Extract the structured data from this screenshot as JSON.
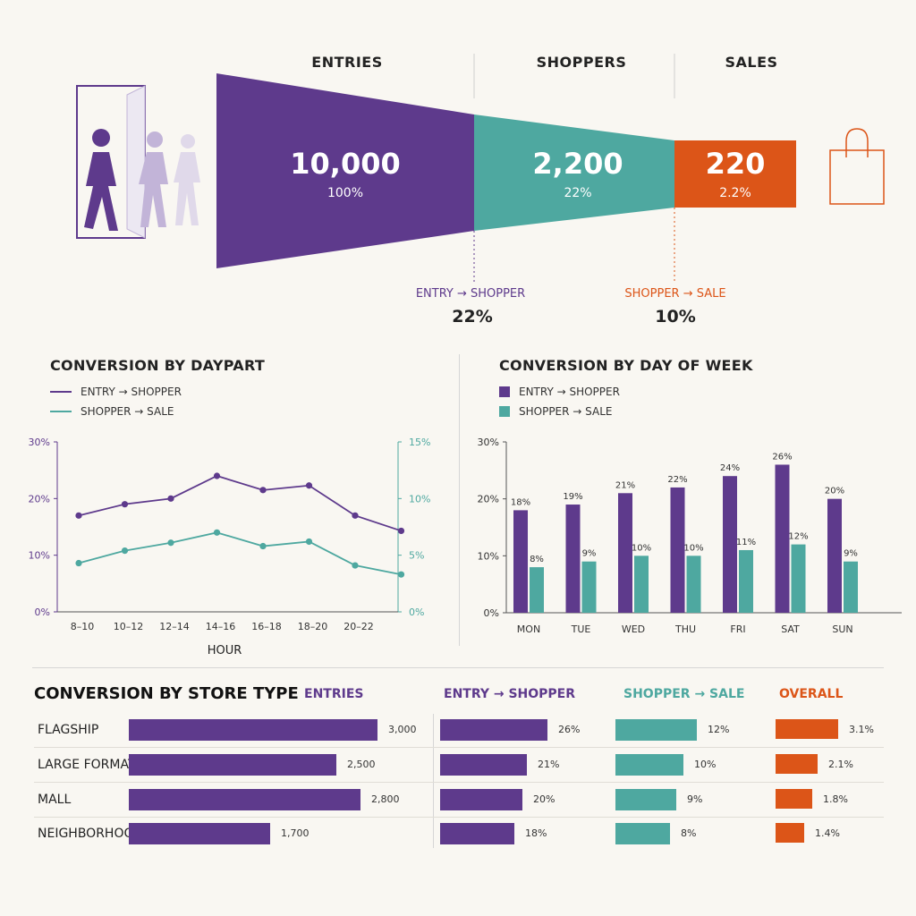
{
  "colors": {
    "purple": "#5e3a8c",
    "teal": "#4ea8a0",
    "orange": "#dc5518",
    "light_purple": "#c2b4d8"
  },
  "funnel": {
    "stages": [
      {
        "label": "ENTRIES",
        "value": "10,000",
        "pct": "100%"
      },
      {
        "label": "SHOPPERS",
        "value": "2,200",
        "pct": "22%"
      },
      {
        "label": "SALES",
        "value": "220",
        "pct": "2.2%"
      }
    ],
    "rates": [
      {
        "label": "ENTRY → SHOPPER",
        "value": "22%"
      },
      {
        "label": "SHOPPER → SALE",
        "value": "10%"
      }
    ],
    "icons": {
      "left": "people-entering-door-icon",
      "right": "shopping-bag-icon"
    }
  },
  "daypart": {
    "title": "CONVERSION BY DAYPART",
    "legend": [
      "ENTRY → SHOPPER",
      "SHOPPER → SALE"
    ],
    "xlabel": "HOUR",
    "left_ticks": [
      "0%",
      "10%",
      "20%",
      "30%"
    ],
    "right_ticks": [
      "0%",
      "5%",
      "10%",
      "15%"
    ]
  },
  "dow": {
    "title": "CONVERSION BY DAY OF WEEK",
    "legend": [
      "ENTRY → SHOPPER",
      "SHOPPER → SALE"
    ],
    "y_ticks": [
      "0%",
      "10%",
      "20%",
      "30%"
    ]
  },
  "store": {
    "title": "CONVERSION BY STORE TYPE",
    "headers": {
      "entries": "ENTRIES",
      "e2s": "ENTRY → SHOPPER",
      "s2s": "SHOPPER → SALE",
      "overall": "OVERALL"
    }
  },
  "chart_data": [
    {
      "type": "line",
      "title": "CONVERSION BY DAYPART",
      "xlabel": "HOUR",
      "categories": [
        "8–10",
        "10–12",
        "12–14",
        "14–16",
        "16–18",
        "18–20",
        "20–22",
        ""
      ],
      "series": [
        {
          "name": "ENTRY → SHOPPER",
          "axis": "left",
          "values": [
            17,
            19,
            20,
            24,
            21.5,
            22.3,
            17,
            14.3
          ]
        },
        {
          "name": "SHOPPER → SALE",
          "axis": "right",
          "values": [
            4.3,
            5.4,
            6.1,
            7.0,
            5.8,
            6.2,
            4.1,
            3.3
          ]
        }
      ],
      "ylim_left": [
        0,
        30
      ],
      "ylim_right": [
        0,
        15
      ],
      "legend": "top-left"
    },
    {
      "type": "bar",
      "title": "CONVERSION BY DAY OF WEEK",
      "categories": [
        "MON",
        "TUE",
        "WED",
        "THU",
        "FRI",
        "SAT",
        "SUN"
      ],
      "series": [
        {
          "name": "ENTRY → SHOPPER",
          "values": [
            18,
            19,
            21,
            22,
            24,
            26,
            20
          ],
          "labels": [
            "18%",
            "19%",
            "21%",
            "22%",
            "24%",
            "26%",
            "20%"
          ]
        },
        {
          "name": "SHOPPER → SALE",
          "values": [
            8,
            9,
            10,
            10,
            11,
            12,
            9
          ],
          "labels": [
            "8%",
            "9%",
            "10%",
            "10%",
            "11%",
            "12%",
            "9%"
          ]
        }
      ],
      "ylim": [
        0,
        30
      ],
      "legend": "top-left"
    },
    {
      "type": "bar",
      "title": "CONVERSION BY STORE TYPE",
      "categories": [
        "FLAGSHIP",
        "LARGE FORMAT",
        "MALL",
        "NEIGHBORHOOD"
      ],
      "series": [
        {
          "name": "ENTRIES",
          "values": [
            3000,
            2500,
            2800,
            1700
          ],
          "labels": [
            "3,000",
            "2,500",
            "2,800",
            "1,700"
          ]
        },
        {
          "name": "ENTRY → SHOPPER",
          "values": [
            26,
            21,
            20,
            18
          ],
          "labels": [
            "26%",
            "21%",
            "20%",
            "18%"
          ]
        },
        {
          "name": "SHOPPER → SALE",
          "values": [
            12,
            10,
            9,
            8
          ],
          "labels": [
            "12%",
            "10%",
            "9%",
            "8%"
          ]
        },
        {
          "name": "OVERALL",
          "values": [
            3.1,
            2.1,
            1.8,
            1.4
          ],
          "labels": [
            "3.1%",
            "2.1%",
            "1.8%",
            "1.4%"
          ]
        }
      ]
    }
  ]
}
